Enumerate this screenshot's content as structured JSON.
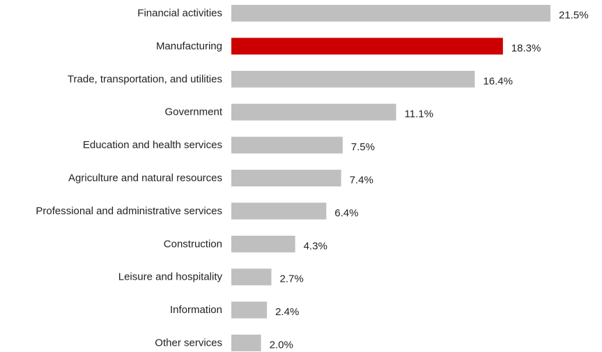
{
  "chart_data": {
    "type": "bar",
    "orientation": "horizontal",
    "title": "",
    "xlabel": "",
    "ylabel": "",
    "grid": false,
    "legend": "none",
    "xlim": [
      0,
      21.5
    ],
    "value_suffix": "%",
    "categories": [
      "Financial activities",
      "Manufacturing",
      "Trade, transportation, and utilities",
      "Government",
      "Education and health services",
      "Agriculture and natural resources",
      "Professional and administrative services",
      "Construction",
      "Leisure and hospitality",
      "Information",
      "Other services"
    ],
    "values": [
      21.5,
      18.3,
      16.4,
      11.1,
      7.5,
      7.4,
      6.4,
      4.3,
      2.7,
      2.4,
      2.0
    ],
    "labels": [
      "21.5%",
      "18.3%",
      "16.4%",
      "11.1%",
      "7.5%",
      "7.4%",
      "6.4%",
      "4.3%",
      "2.7%",
      "2.4%",
      "2.0%"
    ],
    "colors": {
      "default": "#bfbfbf",
      "highlight": "#cc0000"
    },
    "highlight_category": "Manufacturing"
  }
}
